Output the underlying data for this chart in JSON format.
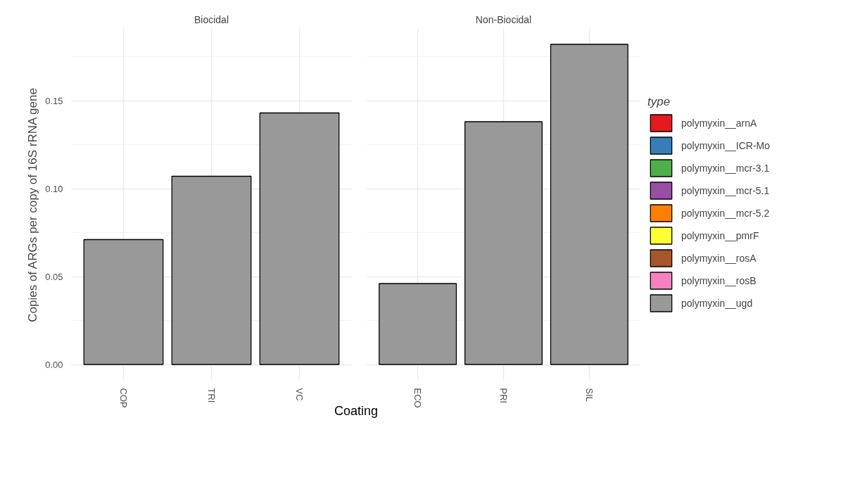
{
  "chart_data": [
    {
      "type": "bar",
      "title": "Biocidal",
      "ylabel": "Copies of ARGs per copy of 16S rRNA gene",
      "xlabel": "Coating",
      "categories": [
        "COP",
        "TRI",
        "VC"
      ],
      "ylim": [
        -0.009,
        0.191
      ],
      "yticks": [
        {
          "value": 0,
          "label": "0.00"
        },
        {
          "value": 0.05,
          "label": "0.05"
        },
        {
          "value": 0.1,
          "label": "0.10"
        },
        {
          "value": 0.15,
          "label": "0.15"
        }
      ],
      "grid": true,
      "series": [
        {
          "color": "#999999",
          "values": [
            0.071,
            0.107,
            0.143
          ]
        }
      ]
    },
    {
      "type": "bar",
      "title": "Non-Biocidal",
      "categories": [
        "ECO",
        "PRI",
        "SIL"
      ],
      "ylim": [
        -0.009,
        0.191
      ],
      "yticks": [
        0,
        0.05,
        0.1,
        0.15
      ],
      "tick_labels": "x",
      "grid": true,
      "legend": "right",
      "legend_title": "type",
      "series": [
        {
          "name": "polymyxin__arnA",
          "color": "#e41a1c",
          "values": [
            null,
            null,
            null
          ]
        },
        {
          "name": "polymyxin__ICR-Mo",
          "color": "#377eb8",
          "values": [
            null,
            null,
            null
          ]
        },
        {
          "name": "polymyxin__mcr-3.1",
          "color": "#4daf4a",
          "values": [
            null,
            null,
            null
          ]
        },
        {
          "name": "polymyxin__mcr-5.1",
          "color": "#984ea3",
          "values": [
            null,
            null,
            null
          ]
        },
        {
          "name": "polymyxin__mcr-5.2",
          "color": "#ff7f00",
          "values": [
            null,
            null,
            null
          ]
        },
        {
          "name": "polymyxin__pmrF",
          "color": "#ffff33",
          "values": [
            null,
            null,
            null
          ]
        },
        {
          "name": "polymyxin__rosA",
          "color": "#a65628",
          "values": [
            null,
            null,
            null
          ]
        },
        {
          "name": "polymyxin__rosB",
          "color": "#f781bf",
          "values": [
            null,
            null,
            null
          ]
        },
        {
          "name": "polymyxin__ugd",
          "color": "#999999",
          "values": [
            0.046,
            0.138,
            0.182
          ]
        }
      ]
    }
  ]
}
